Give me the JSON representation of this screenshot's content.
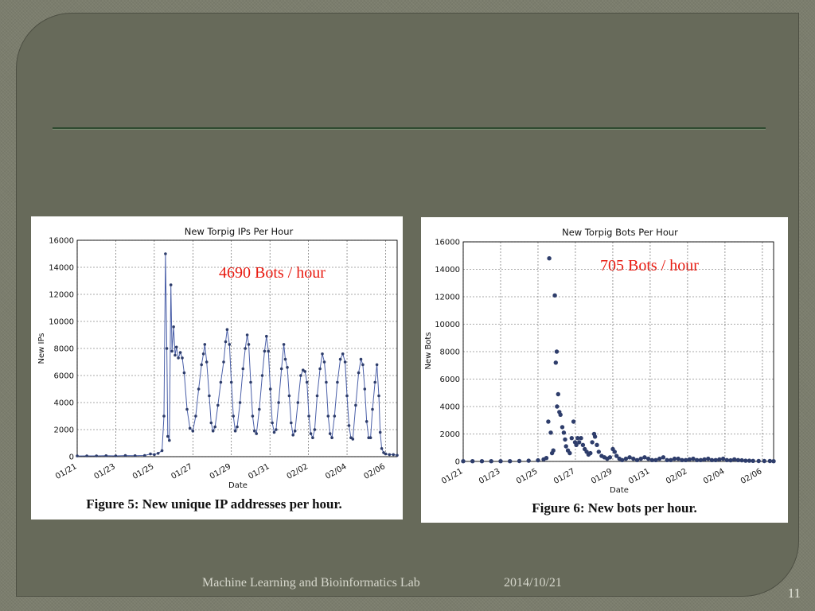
{
  "slide": {
    "footer_text": "Machine Learning and Bioinformatics Lab",
    "date": "2014/10/21",
    "page_number": "11"
  },
  "chart_data": [
    {
      "type": "line",
      "title": "New Torpig IPs Per Hour",
      "xlabel": "Date",
      "ylabel": "New IPs",
      "annotation": "4690  Bots / hour",
      "caption": "Figure 5: New unique IP addresses per hour.",
      "ylim": [
        0,
        16000
      ],
      "yticks": [
        0,
        2000,
        4000,
        6000,
        8000,
        10000,
        12000,
        14000,
        16000
      ],
      "xticks": [
        "01/21",
        "01/23",
        "01/25",
        "01/27",
        "01/29",
        "01/31",
        "02/02",
        "02/04",
        "02/06"
      ],
      "xlim_days": [
        0,
        16.6
      ],
      "grid": true,
      "markers": true,
      "points": [
        [
          0,
          50
        ],
        [
          0.5,
          60
        ],
        [
          1,
          60
        ],
        [
          1.5,
          70
        ],
        [
          2,
          60
        ],
        [
          2.5,
          80
        ],
        [
          3,
          70
        ],
        [
          3.5,
          90
        ],
        [
          3.8,
          200
        ],
        [
          4,
          150
        ],
        [
          4.2,
          250
        ],
        [
          4.4,
          450
        ],
        [
          4.5,
          3000
        ],
        [
          4.58,
          15000
        ],
        [
          4.65,
          8000
        ],
        [
          4.7,
          1500
        ],
        [
          4.78,
          1200
        ],
        [
          4.86,
          12700
        ],
        [
          4.92,
          7800
        ],
        [
          5.0,
          9600
        ],
        [
          5.08,
          7500
        ],
        [
          5.15,
          8100
        ],
        [
          5.25,
          7300
        ],
        [
          5.35,
          7700
        ],
        [
          5.45,
          7300
        ],
        [
          5.55,
          6200
        ],
        [
          5.7,
          3500
        ],
        [
          5.85,
          2100
        ],
        [
          6.0,
          1900
        ],
        [
          6.15,
          3000
        ],
        [
          6.3,
          5000
        ],
        [
          6.45,
          6800
        ],
        [
          6.55,
          7600
        ],
        [
          6.62,
          8300
        ],
        [
          6.72,
          7000
        ],
        [
          6.85,
          4500
        ],
        [
          6.95,
          2500
        ],
        [
          7.05,
          1900
        ],
        [
          7.15,
          2200
        ],
        [
          7.3,
          3800
        ],
        [
          7.45,
          5500
        ],
        [
          7.6,
          7000
        ],
        [
          7.7,
          8500
        ],
        [
          7.78,
          9400
        ],
        [
          7.9,
          8300
        ],
        [
          8.0,
          5500
        ],
        [
          8.1,
          3000
        ],
        [
          8.2,
          1900
        ],
        [
          8.3,
          2200
        ],
        [
          8.45,
          4000
        ],
        [
          8.6,
          6500
        ],
        [
          8.72,
          8000
        ],
        [
          8.82,
          9000
        ],
        [
          8.9,
          8300
        ],
        [
          9.0,
          5500
        ],
        [
          9.1,
          3000
        ],
        [
          9.2,
          1900
        ],
        [
          9.3,
          1700
        ],
        [
          9.45,
          3500
        ],
        [
          9.6,
          6000
        ],
        [
          9.72,
          7800
        ],
        [
          9.82,
          8900
        ],
        [
          9.92,
          7800
        ],
        [
          10.02,
          5000
        ],
        [
          10.12,
          2500
        ],
        [
          10.22,
          1800
        ],
        [
          10.32,
          2000
        ],
        [
          10.45,
          4000
        ],
        [
          10.6,
          6500
        ],
        [
          10.72,
          8300
        ],
        [
          10.8,
          7200
        ],
        [
          10.9,
          6600
        ],
        [
          11.0,
          4500
        ],
        [
          11.1,
          2500
        ],
        [
          11.2,
          1600
        ],
        [
          11.3,
          1900
        ],
        [
          11.45,
          4000
        ],
        [
          11.6,
          6000
        ],
        [
          11.72,
          6400
        ],
        [
          11.82,
          6300
        ],
        [
          11.92,
          5500
        ],
        [
          12.02,
          3000
        ],
        [
          12.12,
          1700
        ],
        [
          12.22,
          1400
        ],
        [
          12.32,
          2000
        ],
        [
          12.45,
          4500
        ],
        [
          12.6,
          6500
        ],
        [
          12.72,
          7600
        ],
        [
          12.82,
          7000
        ],
        [
          12.92,
          5500
        ],
        [
          13.02,
          3000
        ],
        [
          13.12,
          1700
        ],
        [
          13.22,
          1400
        ],
        [
          13.35,
          3000
        ],
        [
          13.5,
          5500
        ],
        [
          13.65,
          7200
        ],
        [
          13.78,
          7600
        ],
        [
          13.9,
          7000
        ],
        [
          14.0,
          4500
        ],
        [
          14.1,
          2300
        ],
        [
          14.2,
          1400
        ],
        [
          14.3,
          1300
        ],
        [
          14.45,
          3800
        ],
        [
          14.6,
          6200
        ],
        [
          14.72,
          7200
        ],
        [
          14.82,
          6800
        ],
        [
          14.92,
          5000
        ],
        [
          15.02,
          2600
        ],
        [
          15.12,
          1400
        ],
        [
          15.22,
          1400
        ],
        [
          15.32,
          3500
        ],
        [
          15.45,
          5500
        ],
        [
          15.55,
          6800
        ],
        [
          15.65,
          4500
        ],
        [
          15.72,
          1800
        ],
        [
          15.8,
          600
        ],
        [
          15.9,
          300
        ],
        [
          16.0,
          200
        ],
        [
          16.2,
          150
        ],
        [
          16.4,
          150
        ],
        [
          16.6,
          100
        ]
      ]
    },
    {
      "type": "scatter",
      "title": "New Torpig Bots Per Hour",
      "xlabel": "Date",
      "ylabel": "New Bots",
      "annotation": "705  Bots / hour",
      "caption": "Figure 6: New bots per hour.",
      "ylim": [
        0,
        16000
      ],
      "yticks": [
        0,
        2000,
        4000,
        6000,
        8000,
        10000,
        12000,
        14000,
        16000
      ],
      "xticks": [
        "01/21",
        "01/23",
        "01/25",
        "01/27",
        "01/29",
        "01/31",
        "02/02",
        "02/04",
        "02/06"
      ],
      "xlim_days": [
        0,
        16.6
      ],
      "grid": true,
      "markers": true,
      "points": [
        [
          0,
          20
        ],
        [
          0.5,
          20
        ],
        [
          1,
          20
        ],
        [
          1.5,
          20
        ],
        [
          2,
          20
        ],
        [
          2.5,
          20
        ],
        [
          3,
          30
        ],
        [
          3.5,
          50
        ],
        [
          4,
          80
        ],
        [
          4.3,
          150
        ],
        [
          4.45,
          250
        ],
        [
          4.55,
          2900
        ],
        [
          4.6,
          14800
        ],
        [
          4.68,
          2100
        ],
        [
          4.75,
          600
        ],
        [
          4.82,
          800
        ],
        [
          4.9,
          12100
        ],
        [
          4.95,
          7200
        ],
        [
          5.0,
          8000
        ],
        [
          5.02,
          4000
        ],
        [
          5.08,
          4900
        ],
        [
          5.14,
          3600
        ],
        [
          5.2,
          3400
        ],
        [
          5.3,
          2500
        ],
        [
          5.38,
          2100
        ],
        [
          5.45,
          1600
        ],
        [
          5.5,
          1100
        ],
        [
          5.6,
          800
        ],
        [
          5.7,
          600
        ],
        [
          5.8,
          1700
        ],
        [
          5.9,
          2900
        ],
        [
          5.98,
          1400
        ],
        [
          6.05,
          1200
        ],
        [
          6.12,
          1700
        ],
        [
          6.2,
          1400
        ],
        [
          6.3,
          1700
        ],
        [
          6.4,
          1200
        ],
        [
          6.5,
          900
        ],
        [
          6.6,
          700
        ],
        [
          6.7,
          500
        ],
        [
          6.8,
          600
        ],
        [
          6.9,
          1400
        ],
        [
          7.0,
          2000
        ],
        [
          7.05,
          1800
        ],
        [
          7.15,
          1200
        ],
        [
          7.25,
          700
        ],
        [
          7.4,
          400
        ],
        [
          7.55,
          300
        ],
        [
          7.7,
          200
        ],
        [
          7.85,
          300
        ],
        [
          8.0,
          900
        ],
        [
          8.1,
          700
        ],
        [
          8.2,
          400
        ],
        [
          8.35,
          200
        ],
        [
          8.5,
          100
        ],
        [
          8.7,
          200
        ],
        [
          8.9,
          300
        ],
        [
          9.1,
          200
        ],
        [
          9.3,
          100
        ],
        [
          9.5,
          200
        ],
        [
          9.7,
          300
        ],
        [
          9.9,
          200
        ],
        [
          10.1,
          100
        ],
        [
          10.3,
          100
        ],
        [
          10.5,
          200
        ],
        [
          10.7,
          300
        ],
        [
          10.9,
          100
        ],
        [
          11.1,
          100
        ],
        [
          11.3,
          200
        ],
        [
          11.5,
          200
        ],
        [
          11.7,
          100
        ],
        [
          11.9,
          100
        ],
        [
          12.1,
          150
        ],
        [
          12.3,
          200
        ],
        [
          12.5,
          100
        ],
        [
          12.7,
          100
        ],
        [
          12.9,
          150
        ],
        [
          13.1,
          200
        ],
        [
          13.3,
          100
        ],
        [
          13.5,
          100
        ],
        [
          13.7,
          150
        ],
        [
          13.9,
          200
        ],
        [
          14.1,
          100
        ],
        [
          14.3,
          80
        ],
        [
          14.5,
          150
        ],
        [
          14.7,
          100
        ],
        [
          14.9,
          80
        ],
        [
          15.1,
          50
        ],
        [
          15.3,
          50
        ],
        [
          15.5,
          40
        ],
        [
          15.8,
          30
        ],
        [
          16.1,
          30
        ],
        [
          16.4,
          30
        ],
        [
          16.6,
          20
        ]
      ]
    }
  ]
}
